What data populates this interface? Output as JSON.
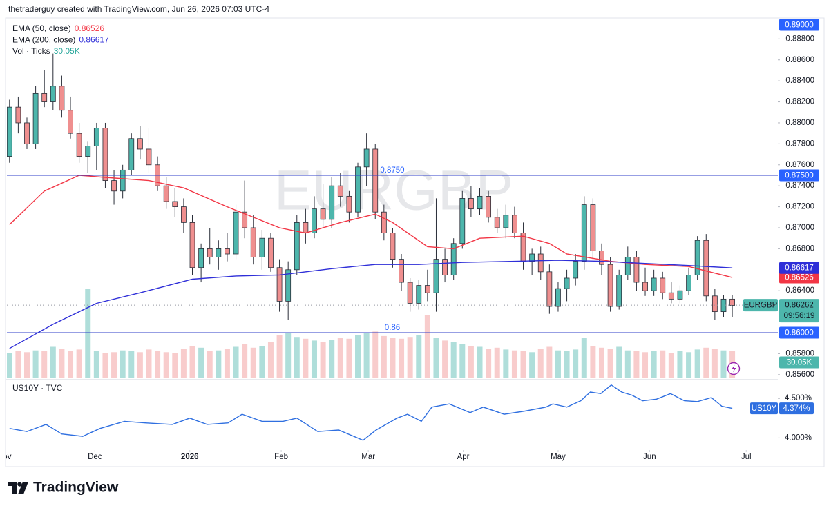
{
  "header": "thetraderguy created with TradingView.com, Jun 26, 2026 07:03 UTC-4",
  "footer": "TradingView",
  "chart_data": [
    {
      "type": "candlestick",
      "watermark": "EURGBP",
      "xlim": [
        -0.3,
        88.15
      ],
      "xticks": [
        {
          "value": -0.6,
          "label": "Nov"
        },
        {
          "value": 9.8,
          "label": "Dec"
        },
        {
          "value": 20.7,
          "label": "2026"
        },
        {
          "value": 31.2,
          "label": "Feb"
        },
        {
          "value": 41.2,
          "label": "Mar"
        },
        {
          "value": 52.1,
          "label": "Apr"
        },
        {
          "value": 63,
          "label": "May"
        },
        {
          "value": 73.5,
          "label": "Jun"
        },
        {
          "value": 84.6,
          "label": "Jul"
        }
      ],
      "ylim": [
        0.85566,
        0.89039
      ],
      "yticks": [
        {
          "value": 0.888,
          "label": "0.88800"
        },
        {
          "value": 0.886,
          "label": "0.88600"
        },
        {
          "value": 0.884,
          "label": "0.88400"
        },
        {
          "value": 0.882,
          "label": "0.88200"
        },
        {
          "value": 0.88,
          "label": "0.88000"
        },
        {
          "value": 0.878,
          "label": "0.87800"
        },
        {
          "value": 0.876,
          "label": "0.87600"
        },
        {
          "value": 0.874,
          "label": "0.87400"
        },
        {
          "value": 0.872,
          "label": "0.87200"
        },
        {
          "value": 0.87,
          "label": "0.87000"
        },
        {
          "value": 0.868,
          "label": "0.86800"
        },
        {
          "value": 0.864,
          "label": "0.86400"
        },
        {
          "value": 0.858,
          "label": "0.85800"
        },
        {
          "value": 0.856,
          "label": "0.85600"
        }
      ],
      "up_color": "#4db6ac",
      "down_color": "#ef8f8f",
      "wick_color": "#2a2e39",
      "candles": {
        "open": [
          0.8768,
          0.8815,
          0.88,
          0.878,
          0.8828,
          0.882,
          0.8835,
          0.8812,
          0.879,
          0.8768,
          0.8778,
          0.8795,
          0.8745,
          0.8735,
          0.8755,
          0.8785,
          0.8775,
          0.876,
          0.874,
          0.8725,
          0.872,
          0.8705,
          0.8662,
          0.868,
          0.8672,
          0.868,
          0.8675,
          0.8715,
          0.87,
          0.8672,
          0.869,
          0.8662,
          0.863,
          0.866,
          0.8705,
          0.8695,
          0.8718,
          0.8708,
          0.874,
          0.873,
          0.8715,
          0.8758,
          0.8775,
          0.8715,
          0.8695,
          0.867,
          0.8648,
          0.8628,
          0.8645,
          0.8638,
          0.867,
          0.8655,
          0.8685,
          0.8728,
          0.8718,
          0.873,
          0.871,
          0.87,
          0.8712,
          0.8695,
          0.8668,
          0.8675,
          0.8658,
          0.8625,
          0.8642,
          0.8652,
          0.8668,
          0.8722,
          0.8678,
          0.8665,
          0.8625,
          0.8655,
          0.8672,
          0.8648,
          0.864,
          0.8652,
          0.8638,
          0.8632,
          0.864,
          0.8655,
          0.8688,
          0.8635,
          0.862,
          0.8632
        ],
        "high": [
          0.8822,
          0.8825,
          0.8805,
          0.8835,
          0.885,
          0.8866,
          0.8845,
          0.8825,
          0.88,
          0.8782,
          0.88,
          0.88,
          0.8755,
          0.876,
          0.879,
          0.8797,
          0.8795,
          0.8768,
          0.8748,
          0.8738,
          0.8728,
          0.8712,
          0.8685,
          0.87,
          0.8688,
          0.8695,
          0.8722,
          0.8745,
          0.8712,
          0.8698,
          0.8695,
          0.867,
          0.8668,
          0.8712,
          0.8718,
          0.873,
          0.8742,
          0.8748,
          0.8752,
          0.8735,
          0.8762,
          0.879,
          0.878,
          0.8722,
          0.87,
          0.8675,
          0.8652,
          0.865,
          0.866,
          0.8728,
          0.868,
          0.869,
          0.8735,
          0.874,
          0.8738,
          0.8735,
          0.8718,
          0.8722,
          0.872,
          0.8705,
          0.868,
          0.8682,
          0.8665,
          0.8648,
          0.866,
          0.8675,
          0.873,
          0.8728,
          0.8685,
          0.8672,
          0.866,
          0.8682,
          0.8678,
          0.8662,
          0.866,
          0.8658,
          0.8648,
          0.8645,
          0.8662,
          0.8692,
          0.8694,
          0.8642,
          0.8636,
          0.8636
        ],
        "low": [
          0.8762,
          0.879,
          0.8775,
          0.8775,
          0.8815,
          0.8812,
          0.8805,
          0.8785,
          0.8762,
          0.8752,
          0.8755,
          0.8738,
          0.8722,
          0.8728,
          0.875,
          0.8765,
          0.8752,
          0.8735,
          0.8718,
          0.871,
          0.8695,
          0.8655,
          0.8648,
          0.8665,
          0.866,
          0.8668,
          0.867,
          0.869,
          0.8665,
          0.866,
          0.8658,
          0.862,
          0.8612,
          0.8655,
          0.8685,
          0.869,
          0.87,
          0.87,
          0.872,
          0.8705,
          0.871,
          0.874,
          0.8708,
          0.8688,
          0.8662,
          0.864,
          0.862,
          0.8622,
          0.863,
          0.862,
          0.8648,
          0.865,
          0.868,
          0.871,
          0.8712,
          0.8705,
          0.8695,
          0.869,
          0.869,
          0.866,
          0.8655,
          0.865,
          0.8618,
          0.862,
          0.863,
          0.8645,
          0.866,
          0.867,
          0.8655,
          0.862,
          0.8622,
          0.865,
          0.864,
          0.8635,
          0.8635,
          0.8632,
          0.8628,
          0.8628,
          0.8636,
          0.865,
          0.863,
          0.8612,
          0.8615,
          0.8615
        ],
        "close": [
          0.8815,
          0.88,
          0.878,
          0.8828,
          0.882,
          0.8835,
          0.8812,
          0.879,
          0.8768,
          0.8778,
          0.8795,
          0.8745,
          0.8735,
          0.8755,
          0.8785,
          0.8775,
          0.876,
          0.874,
          0.8725,
          0.872,
          0.8705,
          0.8662,
          0.868,
          0.8672,
          0.868,
          0.8675,
          0.8715,
          0.87,
          0.8672,
          0.869,
          0.8662,
          0.863,
          0.866,
          0.8705,
          0.8695,
          0.8718,
          0.8708,
          0.874,
          0.873,
          0.8715,
          0.8758,
          0.8775,
          0.8715,
          0.8695,
          0.867,
          0.8648,
          0.8628,
          0.8645,
          0.8638,
          0.867,
          0.8655,
          0.8685,
          0.8728,
          0.8718,
          0.873,
          0.871,
          0.87,
          0.8712,
          0.8695,
          0.8668,
          0.8675,
          0.8658,
          0.8625,
          0.8642,
          0.8652,
          0.8668,
          0.8722,
          0.8678,
          0.8665,
          0.8625,
          0.8655,
          0.8672,
          0.8648,
          0.864,
          0.8652,
          0.8638,
          0.8632,
          0.864,
          0.8655,
          0.8688,
          0.8635,
          0.862,
          0.8632,
          0.8626
        ]
      },
      "volume": {
        "name": "Vol · Ticks",
        "ylim": [
          0,
          100
        ],
        "values": [
          28,
          30,
          29,
          31,
          30,
          35,
          33,
          30,
          32,
          100,
          30,
          28,
          29,
          31,
          30,
          29,
          32,
          30,
          29,
          28,
          33,
          36,
          34,
          30,
          31,
          33,
          35,
          38,
          34,
          36,
          40,
          48,
          50,
          46,
          44,
          42,
          40,
          43,
          45,
          44,
          48,
          50,
          52,
          47,
          45,
          44,
          46,
          48,
          70,
          45,
          42,
          40,
          38,
          36,
          35,
          33,
          34,
          32,
          31,
          30,
          29,
          33,
          35,
          31,
          30,
          32,
          45,
          36,
          34,
          33,
          35,
          31,
          30,
          29,
          30,
          31,
          28,
          30,
          29,
          32,
          34,
          33,
          31,
          30.05
        ],
        "last": {
          "value": 30.05,
          "label": "30.05K"
        }
      },
      "series": [
        {
          "name": "EMA (50, close)",
          "color": "#f23645",
          "last": 0.86526,
          "x": [
            0,
            4,
            8,
            11,
            16,
            20,
            25,
            31,
            34,
            38,
            42,
            44,
            48,
            51,
            54,
            59,
            62,
            64,
            69,
            73,
            78,
            83
          ],
          "values": [
            0.8703,
            0.8735,
            0.875,
            0.8748,
            0.8745,
            0.8738,
            0.872,
            0.87,
            0.8695,
            0.8705,
            0.8713,
            0.8705,
            0.8682,
            0.868,
            0.869,
            0.8692,
            0.8685,
            0.8675,
            0.8668,
            0.8665,
            0.8663,
            0.86526
          ]
        },
        {
          "name": "EMA (200, close)",
          "color": "#2f2fd8",
          "last": 0.86617,
          "x": [
            0,
            5,
            10,
            15,
            21,
            26,
            31,
            37,
            42,
            47,
            52,
            58,
            63,
            68,
            73,
            78,
            83
          ],
          "values": [
            0.8585,
            0.8608,
            0.8628,
            0.8638,
            0.8651,
            0.8654,
            0.8655,
            0.8661,
            0.8665,
            0.8665,
            0.8667,
            0.8668,
            0.8669,
            0.8668,
            0.8666,
            0.8664,
            0.86617
          ]
        }
      ],
      "hlines": [
        {
          "value": 0.875,
          "label": "0.8750",
          "axis_label": "0.87500"
        },
        {
          "value": 0.86,
          "label": "0.86",
          "axis_label": "0.86000"
        }
      ],
      "top_label": {
        "value": 0.89,
        "label": "0.89000"
      },
      "price_label": {
        "symbol": "EURGBP",
        "value": 0.86262,
        "countdown": "09:56:19"
      }
    },
    {
      "type": "line",
      "title": "US10Y · TVC",
      "symbol": "US10Y",
      "color": "#2f6fe0",
      "ylim": [
        3.82,
        4.72
      ],
      "yticks": [
        {
          "value": 4.5,
          "label": "4.500%"
        },
        {
          "value": 4.0,
          "label": "4.000%"
        }
      ],
      "x": [
        0,
        2,
        4.2,
        6,
        8.4,
        10.4,
        13.2,
        15.6,
        18.7,
        20.7,
        22.7,
        25.1,
        26.7,
        29,
        31.4,
        33,
        35.4,
        37.8,
        40.6,
        42.1,
        44.5,
        45.7,
        47.3,
        48.5,
        50.5,
        52.9,
        54.4,
        56.8,
        59.2,
        61.6,
        62.4,
        64,
        65.6,
        66.7,
        67.9,
        69.1,
        70.3,
        71.5,
        72.7,
        74.3,
        75.9,
        77.5,
        79,
        80.6,
        81.8,
        83
      ],
      "values": [
        4.12,
        4.08,
        4.17,
        4.05,
        4.02,
        4.12,
        4.21,
        4.19,
        4.17,
        4.25,
        4.17,
        4.19,
        4.3,
        4.21,
        4.21,
        4.25,
        4.08,
        4.1,
        3.97,
        4.1,
        4.25,
        4.3,
        4.21,
        4.39,
        4.43,
        4.32,
        4.39,
        4.3,
        4.34,
        4.39,
        4.43,
        4.39,
        4.47,
        4.58,
        4.56,
        4.67,
        4.58,
        4.54,
        4.47,
        4.49,
        4.56,
        4.47,
        4.46,
        4.51,
        4.4,
        4.374
      ],
      "last": {
        "value": 4.374,
        "label": "4.374%"
      }
    }
  ]
}
